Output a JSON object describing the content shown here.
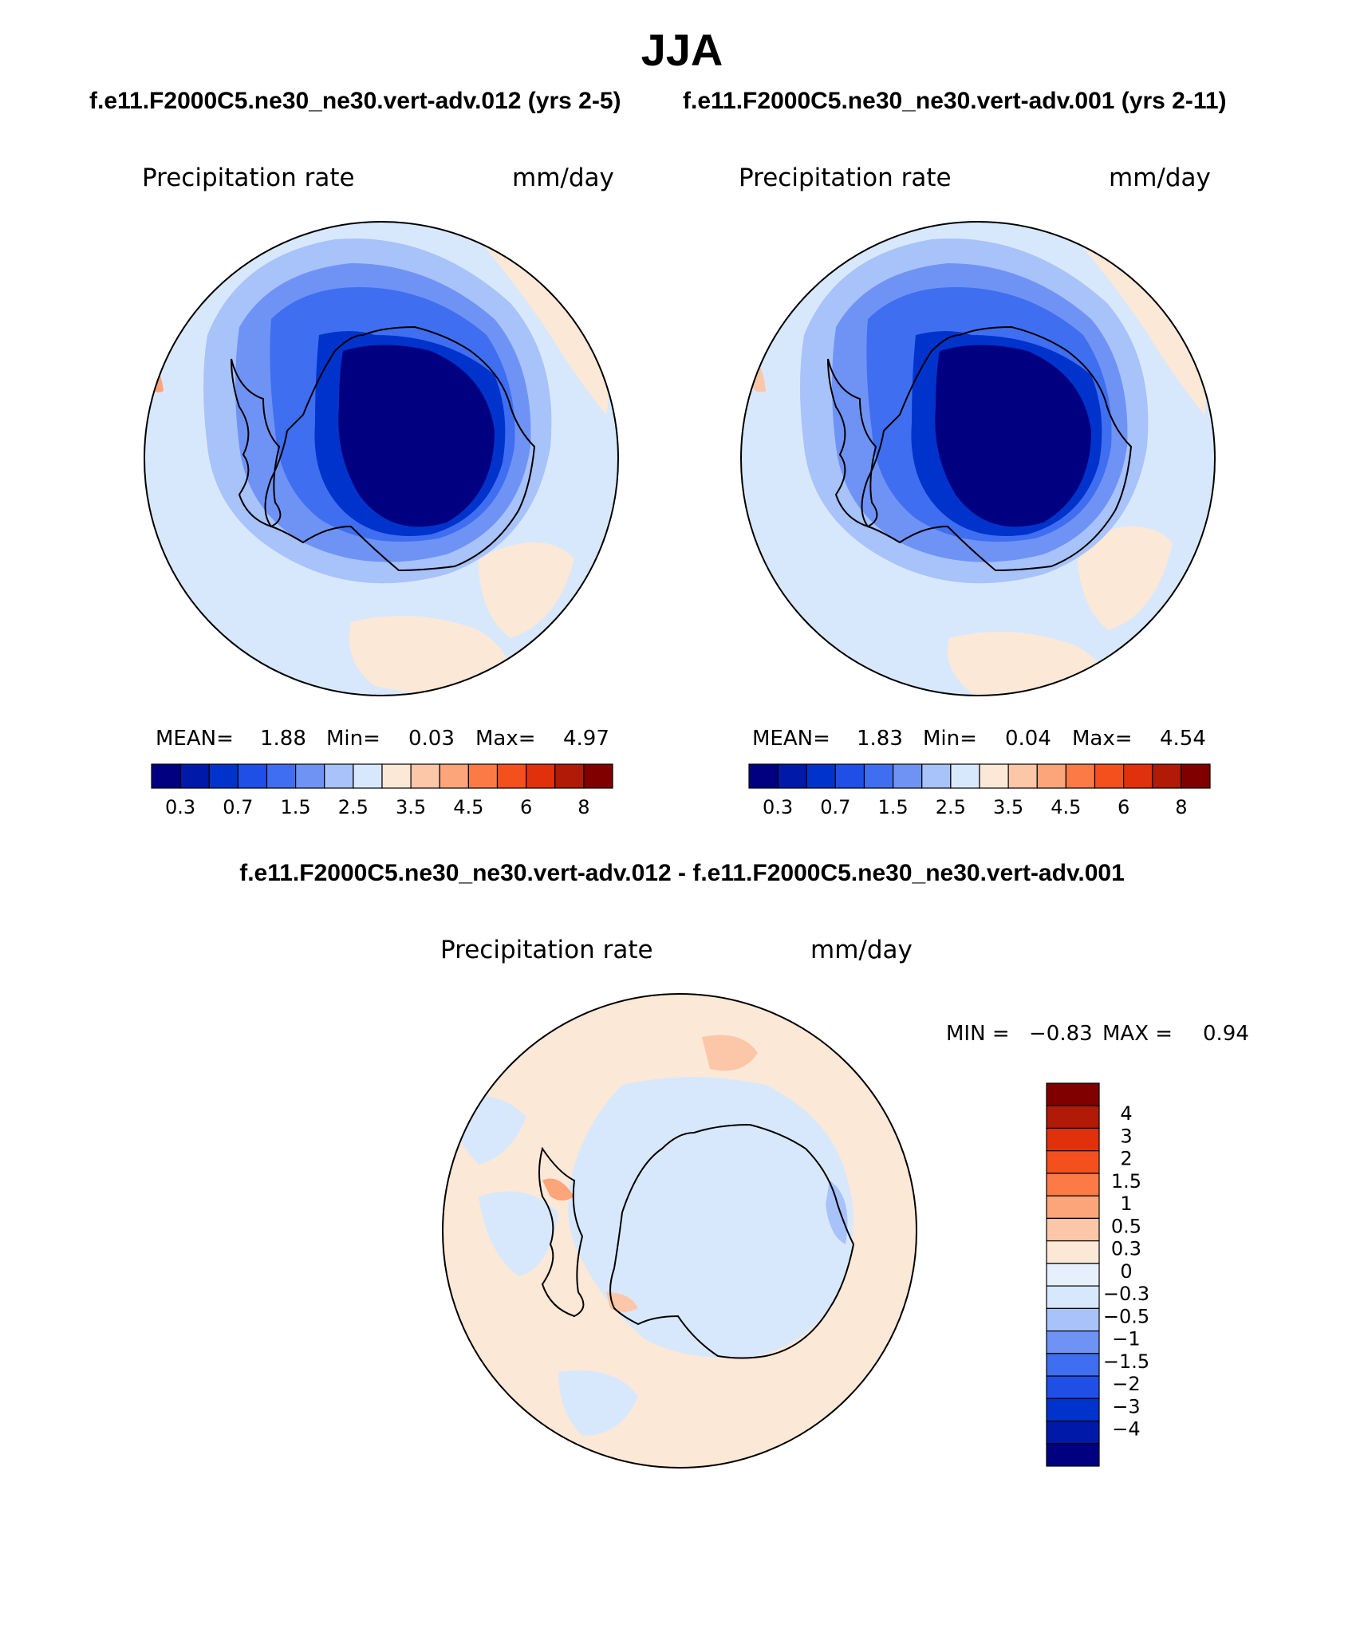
{
  "season": "JJA",
  "panels": [
    {
      "case_title": "f.e11.F2000C5.ne30_ne30.vert-adv.012 (yrs 2-5)",
      "variable": "Precipitation rate",
      "units": "mm/day",
      "stats": {
        "mean_label": "MEAN=",
        "mean": "1.88",
        "min_label": "Min=",
        "min": "0.03",
        "max_label": "Max=",
        "max": "4.97"
      }
    },
    {
      "case_title": "f.e11.F2000C5.ne30_ne30.vert-adv.001 (yrs 2-11)",
      "variable": "Precipitation rate",
      "units": "mm/day",
      "stats": {
        "mean_label": "MEAN=",
        "mean": "1.83",
        "min_label": "Min=",
        "min": "0.04",
        "max_label": "Max=",
        "max": "4.54"
      }
    }
  ],
  "colorbar": {
    "colors": [
      "#000080",
      "#0019a8",
      "#0033cc",
      "#1f4fe6",
      "#3f6ef0",
      "#6f93f5",
      "#a8c2fa",
      "#d8e8fc",
      "#fce8d6",
      "#fcc6a8",
      "#fca47a",
      "#fc7a46",
      "#f4501e",
      "#e0300c",
      "#b01a06",
      "#800000"
    ],
    "tick_labels": [
      "0.3",
      "0.7",
      "1.5",
      "2.5",
      "3.5",
      "4.5",
      "6",
      "8"
    ]
  },
  "difference": {
    "title": "f.e11.F2000C5.ne30_ne30.vert-adv.012 - f.e11.F2000C5.ne30_ne30.vert-adv.001",
    "variable": "Precipitation rate",
    "units": "mm/day",
    "min_label": "MIN =",
    "min": "−0.83",
    "max_label": "MAX =",
    "max": "0.94",
    "colorbar": {
      "colors": [
        "#800000",
        "#b01a06",
        "#e0300c",
        "#f4501e",
        "#fc7a46",
        "#fca47a",
        "#fcc6a8",
        "#fce8d6",
        "#e6f0fc",
        "#d8e8fc",
        "#a8c2fa",
        "#6f93f5",
        "#3f6ef0",
        "#1f4fe6",
        "#0033cc",
        "#0019a8",
        "#000080"
      ],
      "tick_labels": [
        "4",
        "3",
        "2",
        "1.5",
        "1",
        "0.5",
        "0.3",
        "0",
        "−0.3",
        "−0.5",
        "−1",
        "−1.5",
        "−2",
        "−3",
        "−4"
      ]
    }
  }
}
